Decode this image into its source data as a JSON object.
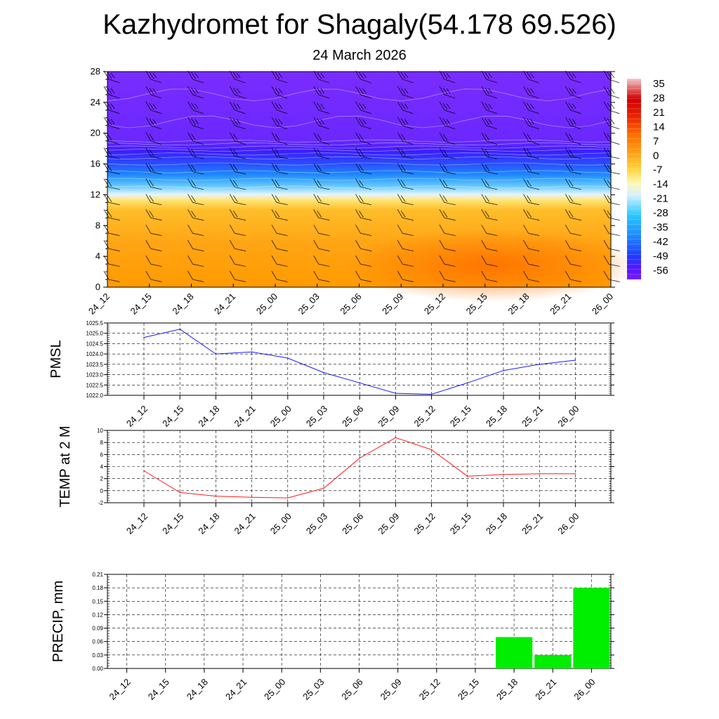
{
  "header": {
    "title": "Kazhydromet for Shagaly(54.178 69.526)",
    "subtitle": "24 March 2026"
  },
  "time_labels": [
    "24_12",
    "24_15",
    "24_18",
    "24_21",
    "25_00",
    "25_03",
    "25_06",
    "25_09",
    "25_12",
    "25_15",
    "25_18",
    "25_21",
    "26_00"
  ],
  "chart_data": [
    {
      "type": "heatmap",
      "title": "",
      "xlabel": "",
      "ylabel": "",
      "x": [
        "24_12",
        "24_15",
        "24_18",
        "24_21",
        "25_00",
        "25_03",
        "25_06",
        "25_09",
        "25_12",
        "25_15",
        "25_18",
        "25_21",
        "26_00"
      ],
      "y_ticks": [
        0,
        4,
        8,
        12,
        16,
        20,
        24,
        28
      ],
      "ylim": [
        0,
        28
      ],
      "colorbar": {
        "labels": [
          "35",
          "28",
          "21",
          "14",
          "7",
          "0",
          "-7",
          "-14",
          "-21",
          "-28",
          "-35",
          "-42",
          "-49",
          "-56"
        ],
        "range": [
          -60,
          38
        ]
      },
      "temperature_profile": {
        "heights": [
          0,
          2,
          4,
          6,
          8,
          10,
          11.5,
          12,
          13,
          14,
          15,
          16,
          17,
          18,
          19,
          20,
          24,
          28
        ],
        "values": [
          12,
          11,
          11,
          10,
          8,
          6,
          3,
          -16,
          -22,
          -28,
          -34,
          -40,
          -46,
          -54,
          -58,
          -57,
          -57,
          -57
        ]
      },
      "warm_core_center": [
        "25_12",
        "25_21"
      ],
      "wind_barbs": "present at every time step and level"
    },
    {
      "type": "line",
      "ylabel": "PMSL",
      "x": [
        "24_12",
        "24_15",
        "24_18",
        "24_21",
        "25_00",
        "25_03",
        "25_06",
        "25_09",
        "25_12",
        "25_15",
        "25_18",
        "25_21",
        "26_00"
      ],
      "series": [
        {
          "name": "PMSL",
          "color": "#1a1aff",
          "values": [
            1024.8,
            1025.2,
            1024.0,
            1024.1,
            1023.8,
            1023.1,
            1022.6,
            1022.1,
            1022.05,
            1022.6,
            1023.2,
            1023.5,
            1023.7
          ]
        }
      ],
      "ylim": [
        1022.0,
        1025.5
      ],
      "y_ticks": [
        "1022.0",
        "1022.5",
        "1023.0",
        "1023.5",
        "1024.0",
        "1024.5",
        "1025.0",
        "1025.5"
      ]
    },
    {
      "type": "line",
      "ylabel": "TEMP at 2 M",
      "x": [
        "24_12",
        "24_15",
        "24_18",
        "24_21",
        "25_00",
        "25_03",
        "25_06",
        "25_09",
        "25_12",
        "25_15",
        "25_18",
        "25_21",
        "26_00"
      ],
      "series": [
        {
          "name": "TEMP at 2 M",
          "color": "#ff1a1a",
          "values": [
            3.3,
            -0.3,
            -0.9,
            -1.1,
            -1.2,
            0.4,
            5.4,
            8.8,
            6.8,
            2.4,
            2.7,
            2.8,
            2.8
          ]
        }
      ],
      "ylim": [
        -2,
        10
      ],
      "y_ticks": [
        "-2",
        "0",
        "2",
        "4",
        "6",
        "8",
        "10"
      ]
    },
    {
      "type": "bar",
      "ylabel": "PRECIP, mm",
      "categories": [
        "24_12",
        "24_15",
        "24_18",
        "24_21",
        "25_00",
        "25_03",
        "25_06",
        "25_09",
        "25_12",
        "25_15",
        "25_18",
        "25_21",
        "26_00"
      ],
      "values": [
        0,
        0,
        0,
        0,
        0,
        0,
        0,
        0,
        0,
        0,
        0.07,
        0.03,
        0.18
      ],
      "color": "#00ee00",
      "ylim": [
        0,
        0.21
      ],
      "y_ticks": [
        "0.00",
        "0.03",
        "0.06",
        "0.09",
        "0.12",
        "0.15",
        "0.18",
        "0.21"
      ]
    }
  ]
}
